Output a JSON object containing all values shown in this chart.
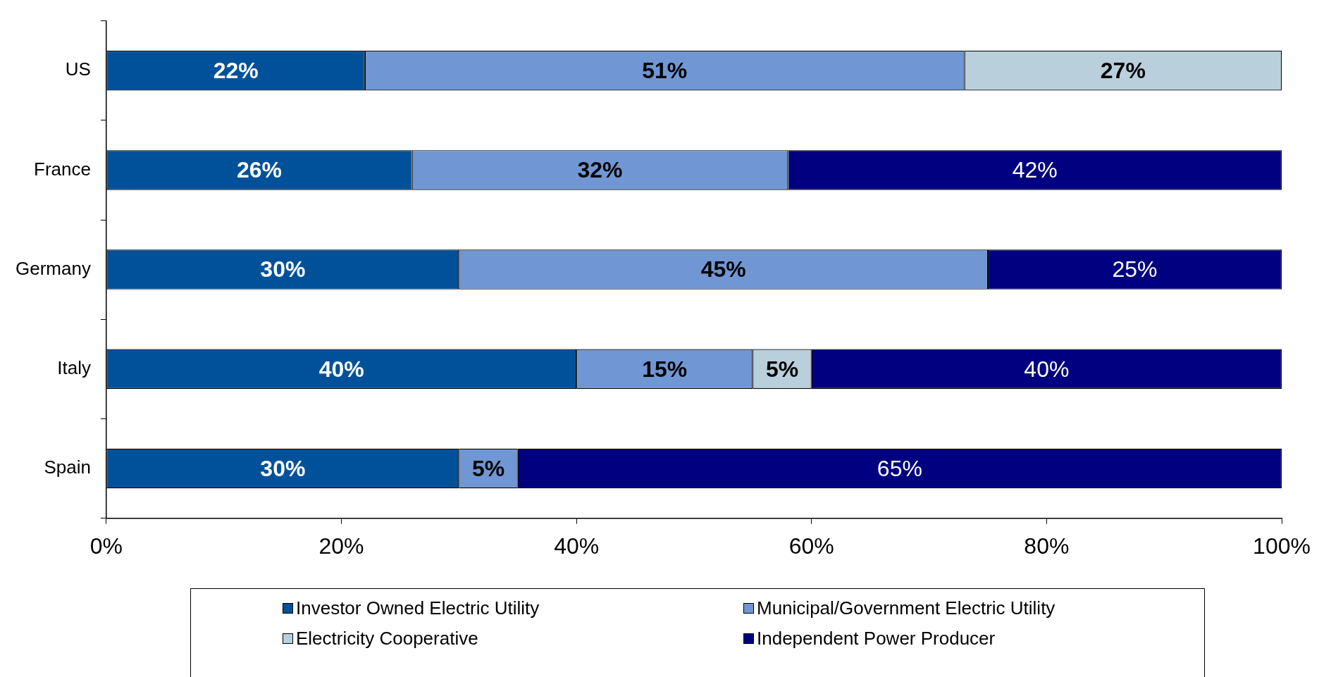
{
  "chart_data": {
    "type": "bar",
    "orientation": "horizontal",
    "stacked": true,
    "categories": [
      "US",
      "France",
      "Germany",
      "Italy",
      "Spain"
    ],
    "series": [
      {
        "name": "Investor Owned Electric Utility",
        "color": "#00519a",
        "values": [
          22,
          26,
          30,
          40,
          30
        ],
        "value_labels": [
          "22%",
          "26%",
          "30%",
          "40%",
          "30%"
        ]
      },
      {
        "name": "Municipal/Government Electric Utility",
        "color": "#7097d4",
        "values": [
          51,
          32,
          45,
          15,
          5
        ],
        "value_labels": [
          "51%",
          "32%",
          "45%",
          "15%",
          "5%"
        ]
      },
      {
        "name": "Electricity Cooperative",
        "color": "#b9cfdc",
        "values": [
          27,
          null,
          null,
          5,
          null
        ],
        "value_labels": [
          "27%",
          null,
          null,
          "5%",
          null
        ]
      },
      {
        "name": "Independent Power Producer",
        "color": "#000080",
        "values": [
          null,
          42,
          25,
          40,
          65
        ],
        "value_labels": [
          null,
          "42%",
          "25%",
          "40%",
          "65%"
        ]
      }
    ],
    "xlim": [
      0,
      100
    ],
    "xticks": [
      {
        "value": 0,
        "label": "0%"
      },
      {
        "value": 20,
        "label": "20%"
      },
      {
        "value": 40,
        "label": "40%"
      },
      {
        "value": 60,
        "label": "60%"
      },
      {
        "value": 80,
        "label": "80%"
      },
      {
        "value": 100,
        "label": "100%"
      }
    ],
    "grid": false,
    "legend": "bottom"
  }
}
